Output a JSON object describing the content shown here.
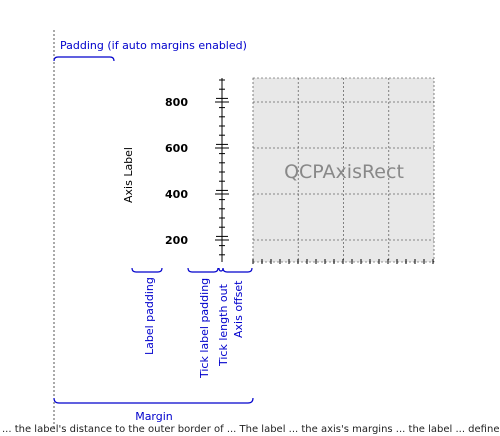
{
  "annotations": {
    "padding": "Padding (if auto margins enabled)",
    "label_padding": "Label padding",
    "tick_label_padding": "Tick label padding",
    "tick_length_out": "Tick length out",
    "axis_offset": "Axis offset",
    "margin": "Margin"
  },
  "axis": {
    "label": "Axis Label",
    "ticks": [
      "800",
      "600",
      "400",
      "200"
    ]
  },
  "axis_rect": {
    "label": "QCPAxisRect"
  },
  "colors": {
    "annotation": "#0000cc",
    "rect_fill": "#e8e8e8",
    "grid": "#666666"
  },
  "caption": "... the label's distance to the outer border of ... The label ... the axis's margins ... the label ... defined ..."
}
